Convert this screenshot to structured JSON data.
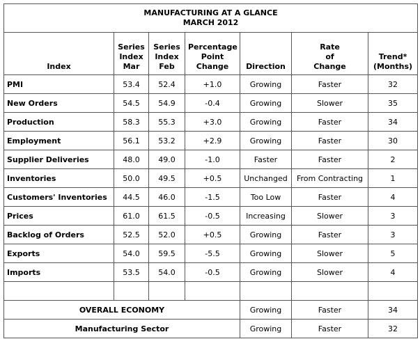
{
  "header": {
    "title": "MANUFACTURING AT A GLANCE",
    "subtitle": "MARCH 2012"
  },
  "columns": [
    [
      "Index"
    ],
    [
      "Series",
      "Index",
      "Mar"
    ],
    [
      "Series",
      "Index",
      "Feb"
    ],
    [
      "Percentage",
      "Point",
      "Change"
    ],
    [
      "Direction"
    ],
    [
      "Rate",
      "of",
      "Change"
    ],
    [
      "Trend*",
      "(Months)"
    ]
  ],
  "table": {
    "rows": [
      [
        "PMI",
        "53.4",
        "52.4",
        "+1.0",
        "Growing",
        "Faster",
        "32"
      ],
      [
        "New Orders",
        "54.5",
        "54.9",
        "-0.4",
        "Growing",
        "Slower",
        "35"
      ],
      [
        "Production",
        "58.3",
        "55.3",
        "+3.0",
        "Growing",
        "Faster",
        "34"
      ],
      [
        "Employment",
        "56.1",
        "53.2",
        "+2.9",
        "Growing",
        "Faster",
        "30"
      ],
      [
        "Supplier Deliveries",
        "48.0",
        "49.0",
        "-1.0",
        "Faster",
        "Faster",
        "2"
      ],
      [
        "Inventories",
        "50.0",
        "49.5",
        "+0.5",
        "Unchanged",
        "From Contracting",
        "1"
      ],
      [
        "Customers' Inventories",
        "44.5",
        "46.0",
        "-1.5",
        "Too Low",
        "Faster",
        "4"
      ],
      [
        "Prices",
        "61.0",
        "61.5",
        "-0.5",
        "Increasing",
        "Slower",
        "3"
      ],
      [
        "Backlog of Orders",
        "52.5",
        "52.0",
        "+0.5",
        "Growing",
        "Faster",
        "3"
      ],
      [
        "Exports",
        "54.0",
        "59.5",
        "-5.5",
        "Growing",
        "Slower",
        "5"
      ],
      [
        "Imports",
        "53.5",
        "54.0",
        "-0.5",
        "Growing",
        "Slower",
        "4"
      ]
    ]
  },
  "summary": [
    [
      "OVERALL ECONOMY",
      "Growing",
      "Faster",
      "34"
    ],
    [
      "Manufacturing Sector",
      "Growing",
      "Faster",
      "32"
    ]
  ]
}
